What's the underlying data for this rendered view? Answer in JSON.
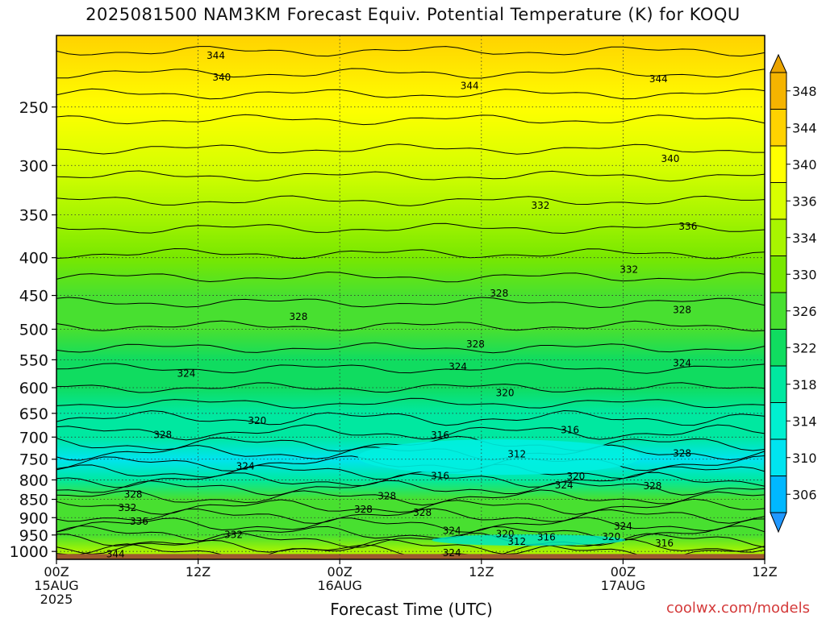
{
  "title": "2025081500 NAM3KM Forecast Equiv. Potential Temperature (K) for KOQU",
  "xlabel": "Forecast Time (UTC)",
  "credit": "coolwx.com/models",
  "chart_data": {
    "type": "heatmap",
    "title": "2025081500 NAM3KM Forecast Equiv. Potential Temperature (K) for KOQU",
    "xlabel": "Forecast Time (UTC)",
    "ylabel": "",
    "x_ticks": [
      {
        "hour": 0,
        "lines": [
          "00Z",
          "15AUG",
          "2025"
        ]
      },
      {
        "hour": 12,
        "lines": [
          "12Z"
        ]
      },
      {
        "hour": 24,
        "lines": [
          "00Z",
          "16AUG"
        ]
      },
      {
        "hour": 36,
        "lines": [
          "12Z"
        ]
      },
      {
        "hour": 48,
        "lines": [
          "00Z",
          "17AUG"
        ]
      },
      {
        "hour": 60,
        "lines": [
          "12Z"
        ]
      }
    ],
    "xlim": [
      0,
      60
    ],
    "y_ticks": [
      "250",
      "300",
      "350",
      "400",
      "450",
      "500",
      "550",
      "600",
      "650",
      "700",
      "750",
      "800",
      "850",
      "900",
      "950",
      "1000"
    ],
    "ylim": [
      1025,
      200
    ],
    "y_scale": "log-pressure",
    "grid": true,
    "colorbar": {
      "labels": [
        "348",
        "344",
        "340",
        "336",
        "334",
        "330",
        "326",
        "322",
        "318",
        "314",
        "310",
        "306"
      ],
      "colors": [
        "#f5b400",
        "#ffd200",
        "#ffff00",
        "#d8ff00",
        "#a8f500",
        "#78e800",
        "#48e030",
        "#10dc60",
        "#00e8a0",
        "#00f0d0",
        "#00e4f0",
        "#00b8ff"
      ],
      "top_arrow_color": "#eaa400",
      "bottom_arrow_color": "#2098ff"
    },
    "colors": {
      "band_top": "#f5b400",
      "band_mid": "#78e800",
      "band_low": "#10dc60",
      "band_min": "#00f0e0",
      "ground": "#9e5a2e"
    },
    "levels": [
      {
        "p": 200,
        "v": 346
      },
      {
        "p": 250,
        "v": 342
      },
      {
        "p": 300,
        "v": 338
      },
      {
        "p": 350,
        "v": 334
      },
      {
        "p": 400,
        "v": 331
      },
      {
        "p": 450,
        "v": 329
      },
      {
        "p": 500,
        "v": 327
      },
      {
        "p": 550,
        "v": 325
      },
      {
        "p": 600,
        "v": 322
      },
      {
        "p": 650,
        "v": 320
      },
      {
        "p": 700,
        "v": 318
      },
      {
        "p": 750,
        "v": 312
      },
      {
        "p": 800,
        "v": 318
      },
      {
        "p": 850,
        "v": 326
      },
      {
        "p": 900,
        "v": 328
      },
      {
        "p": 950,
        "v": 326
      },
      {
        "p": 1000,
        "v": 334
      }
    ],
    "contour_labels": [
      {
        "t": 13.5,
        "p": 213,
        "text": "344"
      },
      {
        "t": 14,
        "p": 228,
        "text": "340"
      },
      {
        "t": 35,
        "p": 234,
        "text": "344"
      },
      {
        "t": 51,
        "p": 229,
        "text": "344"
      },
      {
        "t": 52,
        "p": 294,
        "text": "340"
      },
      {
        "t": 41,
        "p": 340,
        "text": "332"
      },
      {
        "t": 53.5,
        "p": 363,
        "text": "336"
      },
      {
        "t": 48.5,
        "p": 415,
        "text": "332"
      },
      {
        "t": 37.5,
        "p": 447,
        "text": "328"
      },
      {
        "t": 20.5,
        "p": 481,
        "text": "328"
      },
      {
        "t": 53,
        "p": 471,
        "text": "328"
      },
      {
        "t": 35.5,
        "p": 524,
        "text": "328"
      },
      {
        "t": 53,
        "p": 556,
        "text": "324"
      },
      {
        "t": 11,
        "p": 574,
        "text": "324"
      },
      {
        "t": 34,
        "p": 562,
        "text": "324"
      },
      {
        "t": 38,
        "p": 610,
        "text": "320"
      },
      {
        "t": 17,
        "p": 665,
        "text": "320"
      },
      {
        "t": 32.5,
        "p": 696,
        "text": "316"
      },
      {
        "t": 43.5,
        "p": 685,
        "text": "316"
      },
      {
        "t": 9,
        "p": 695,
        "text": "328"
      },
      {
        "t": 39,
        "p": 738,
        "text": "312"
      },
      {
        "t": 53,
        "p": 736,
        "text": "328"
      },
      {
        "t": 16,
        "p": 767,
        "text": "324"
      },
      {
        "t": 32.5,
        "p": 790,
        "text": "316"
      },
      {
        "t": 44,
        "p": 791,
        "text": "320"
      },
      {
        "t": 43,
        "p": 813,
        "text": "324"
      },
      {
        "t": 50.5,
        "p": 815,
        "text": "328"
      },
      {
        "t": 6.5,
        "p": 837,
        "text": "328"
      },
      {
        "t": 28,
        "p": 841,
        "text": "328"
      },
      {
        "t": 6,
        "p": 873,
        "text": "332"
      },
      {
        "t": 26,
        "p": 877,
        "text": "328"
      },
      {
        "t": 31,
        "p": 886,
        "text": "328"
      },
      {
        "t": 7,
        "p": 911,
        "text": "336"
      },
      {
        "t": 33.5,
        "p": 938,
        "text": "324"
      },
      {
        "t": 48,
        "p": 925,
        "text": "324"
      },
      {
        "t": 15,
        "p": 949,
        "text": "332"
      },
      {
        "t": 38,
        "p": 947,
        "text": "320"
      },
      {
        "t": 41.5,
        "p": 957,
        "text": "316"
      },
      {
        "t": 47,
        "p": 955,
        "text": "320"
      },
      {
        "t": 39,
        "p": 970,
        "text": "312"
      },
      {
        "t": 51.5,
        "p": 975,
        "text": "316"
      },
      {
        "t": 5,
        "p": 1008,
        "text": "344"
      },
      {
        "t": 33.5,
        "p": 1005,
        "text": "324"
      }
    ]
  }
}
